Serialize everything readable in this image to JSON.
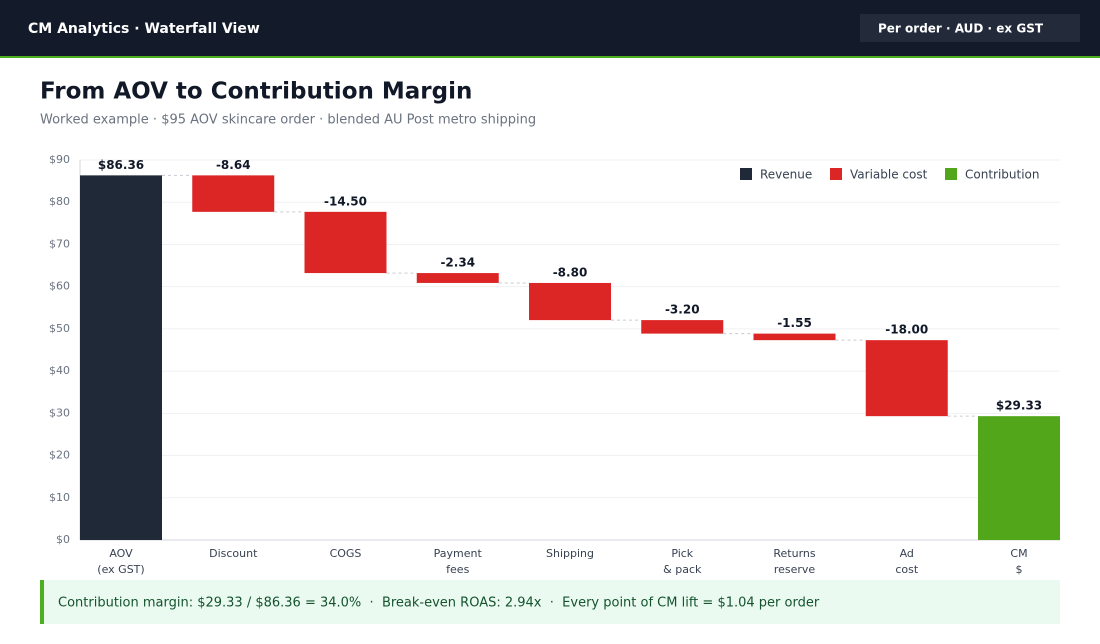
{
  "header": {
    "title": "CM Analytics · Waterfall View",
    "badge": "Per order · AUD · ex GST"
  },
  "chart_data": {
    "type": "waterfall",
    "title": "From AOV to Contribution Margin",
    "subtitle": "Worked example · $95 AOV skincare order · blended AU Post metro shipping",
    "categories": [
      [
        "AOV",
        "(ex GST)"
      ],
      [
        "Discount"
      ],
      [
        "COGS"
      ],
      [
        "Payment",
        "fees"
      ],
      [
        "Shipping"
      ],
      [
        "Pick",
        "& pack"
      ],
      [
        "Returns",
        "reserve"
      ],
      [
        "Ad",
        "cost"
      ],
      [
        "CM",
        "$"
      ]
    ],
    "measures": [
      "absolute",
      "relative",
      "relative",
      "relative",
      "relative",
      "relative",
      "relative",
      "relative",
      "total"
    ],
    "values": [
      86.36,
      -8.64,
      -14.5,
      -2.34,
      -8.8,
      -3.2,
      -1.55,
      -18.0,
      29.33
    ],
    "value_labels": [
      "$86.36",
      "-8.64",
      "-14.50",
      "-2.34",
      "-8.80",
      "-3.20",
      "-1.55",
      "-18.00",
      "$29.33"
    ],
    "colors": [
      "#1f2937",
      "#dc2626",
      "#dc2626",
      "#dc2626",
      "#dc2626",
      "#dc2626",
      "#dc2626",
      "#dc2626",
      "#52a61a"
    ],
    "legend": [
      {
        "name": "Revenue",
        "color": "#1f2937"
      },
      {
        "name": "Variable cost",
        "color": "#dc2626"
      },
      {
        "name": "Contribution",
        "color": "#52a61a"
      }
    ],
    "ylim": [
      0,
      90
    ],
    "yticks": [
      {
        "value": 0,
        "label": "$0"
      },
      {
        "value": 10,
        "label": "$10"
      },
      {
        "value": 20,
        "label": "$20"
      },
      {
        "value": 30,
        "label": "$30"
      },
      {
        "value": 40,
        "label": "$40"
      },
      {
        "value": 50,
        "label": "$50"
      },
      {
        "value": 60,
        "label": "$60"
      },
      {
        "value": 70,
        "label": "$70"
      },
      {
        "value": 80,
        "label": "$80"
      },
      {
        "value": 90,
        "label": "$90"
      }
    ],
    "grid": true
  },
  "summary": "Contribution margin: $29.33 / $86.36 = 34.0%  ·  Break-even ROAS: 2.94x  ·  Every point of CM lift = $1.04 per order"
}
